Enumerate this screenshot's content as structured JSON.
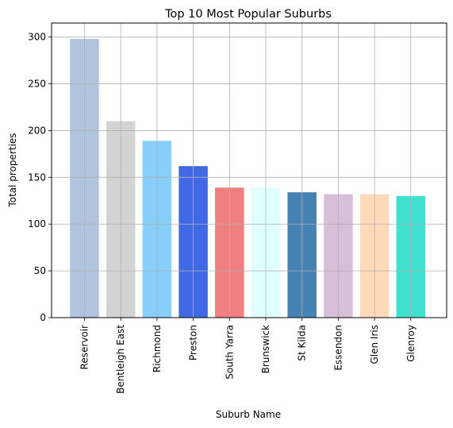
{
  "chart_data": {
    "type": "bar",
    "title": "Top 10 Most Popular Suburbs",
    "xlabel": "Suburb Name",
    "ylabel": "Total properties",
    "categories": [
      "Reservoir",
      "Bentleigh East",
      "Richmond",
      "Preston",
      "South Yarra",
      "Brunswick",
      "St Kilda",
      "Essendon",
      "Glen Iris",
      "Glenroy"
    ],
    "values": [
      298,
      210,
      189,
      162,
      139,
      139,
      134,
      132,
      132,
      130
    ],
    "colors": [
      "#b0c4de",
      "#d3d3d3",
      "#87cefa",
      "#4169e1",
      "#f08080",
      "#e0ffff",
      "#4682b4",
      "#d8bfd8",
      "#ffdab9",
      "#40e0d0"
    ],
    "ylim": [
      0,
      315
    ],
    "yticks": [
      0,
      50,
      100,
      150,
      200,
      250,
      300
    ],
    "grid": true,
    "legend": "none"
  }
}
